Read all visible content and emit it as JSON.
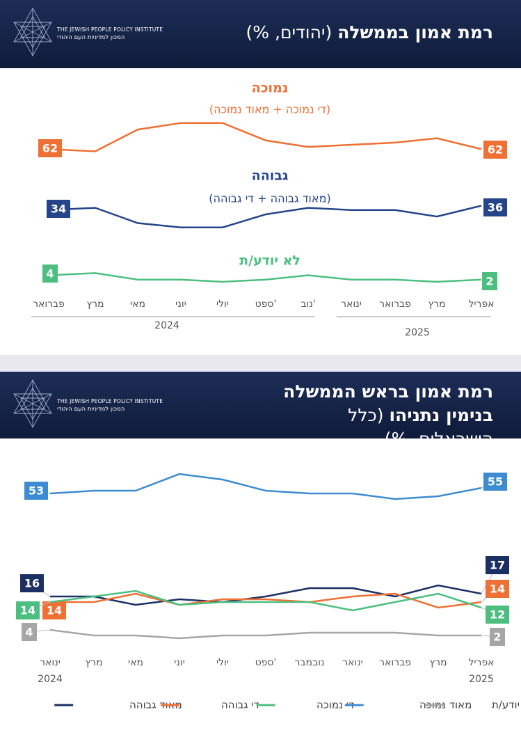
{
  "logo": {
    "en": "THE JEWISH PEOPLE POLICY INSTITUTE",
    "he": "המכון למדיניות העם היהודי"
  },
  "chart_data": [
    {
      "type": "line",
      "title": "רמת אמון בממשלה",
      "subtitle": "(יהודים, %)",
      "categories": [
        "פברואר",
        "מרץ",
        "מאי",
        "יוני",
        "יולי",
        "ספט'",
        "נוב'",
        "ינואר",
        "פברואר",
        "מרץ",
        "אפריל"
      ],
      "x_group_labels": [
        "2024",
        "2025"
      ],
      "ylim": [
        0,
        80
      ],
      "series": [
        {
          "name": "נמוכה",
          "note": "(די נמוכה + מאוד נמוכה)",
          "color": "#ee7034",
          "values": [
            62,
            61,
            71,
            74,
            74,
            66,
            63,
            64,
            65,
            67,
            62
          ]
        },
        {
          "name": "גבוהה",
          "note": "(מאוד גבוהה + די גבוהה)",
          "color": "#24458a",
          "values": [
            34,
            35,
            28,
            26,
            26,
            32,
            35,
            34,
            34,
            31,
            36
          ]
        },
        {
          "name": "לא יודע/ת",
          "color": "#4cbf80",
          "values": [
            4,
            5,
            2,
            2,
            1,
            2,
            4,
            2,
            2,
            1,
            2
          ]
        }
      ]
    },
    {
      "type": "line",
      "title": "רמת אמון בראש הממשלה בנימין נתניהו",
      "subtitle": "(כלל הישראלים, %)",
      "categories": [
        "ינואר",
        "מרץ",
        "מאי",
        "יוני",
        "יולי",
        "ספט'",
        "נובמבר",
        "ינואר",
        "פברואר",
        "מרץ",
        "אפריל"
      ],
      "x_group_labels": [
        "2024",
        "2025"
      ],
      "ylim": [
        0,
        62
      ],
      "series": [
        {
          "name": "מאוד גבוהה",
          "color": "#1b2f63",
          "values": [
            16,
            16,
            13,
            15,
            14,
            16,
            19,
            19,
            16,
            20,
            17
          ]
        },
        {
          "name": "די גבוהה",
          "color": "#ee7034",
          "values": [
            14,
            14,
            17,
            13,
            15,
            15,
            14,
            16,
            17,
            12,
            14
          ]
        },
        {
          "name": "די נמוכה",
          "color": "#4cbf80",
          "values": [
            14,
            16,
            18,
            13,
            14,
            14,
            14,
            11,
            14,
            17,
            12
          ]
        },
        {
          "name": "מאוד נמוכה",
          "color": "#3d8bd1",
          "values": [
            53,
            54,
            54,
            60,
            58,
            54,
            53,
            53,
            51,
            52,
            55
          ]
        },
        {
          "name": "לא יודע/ת",
          "color": "#a6a6a6",
          "values": [
            4,
            2,
            2,
            1,
            2,
            2,
            3,
            3,
            3,
            2,
            2
          ]
        }
      ]
    }
  ]
}
